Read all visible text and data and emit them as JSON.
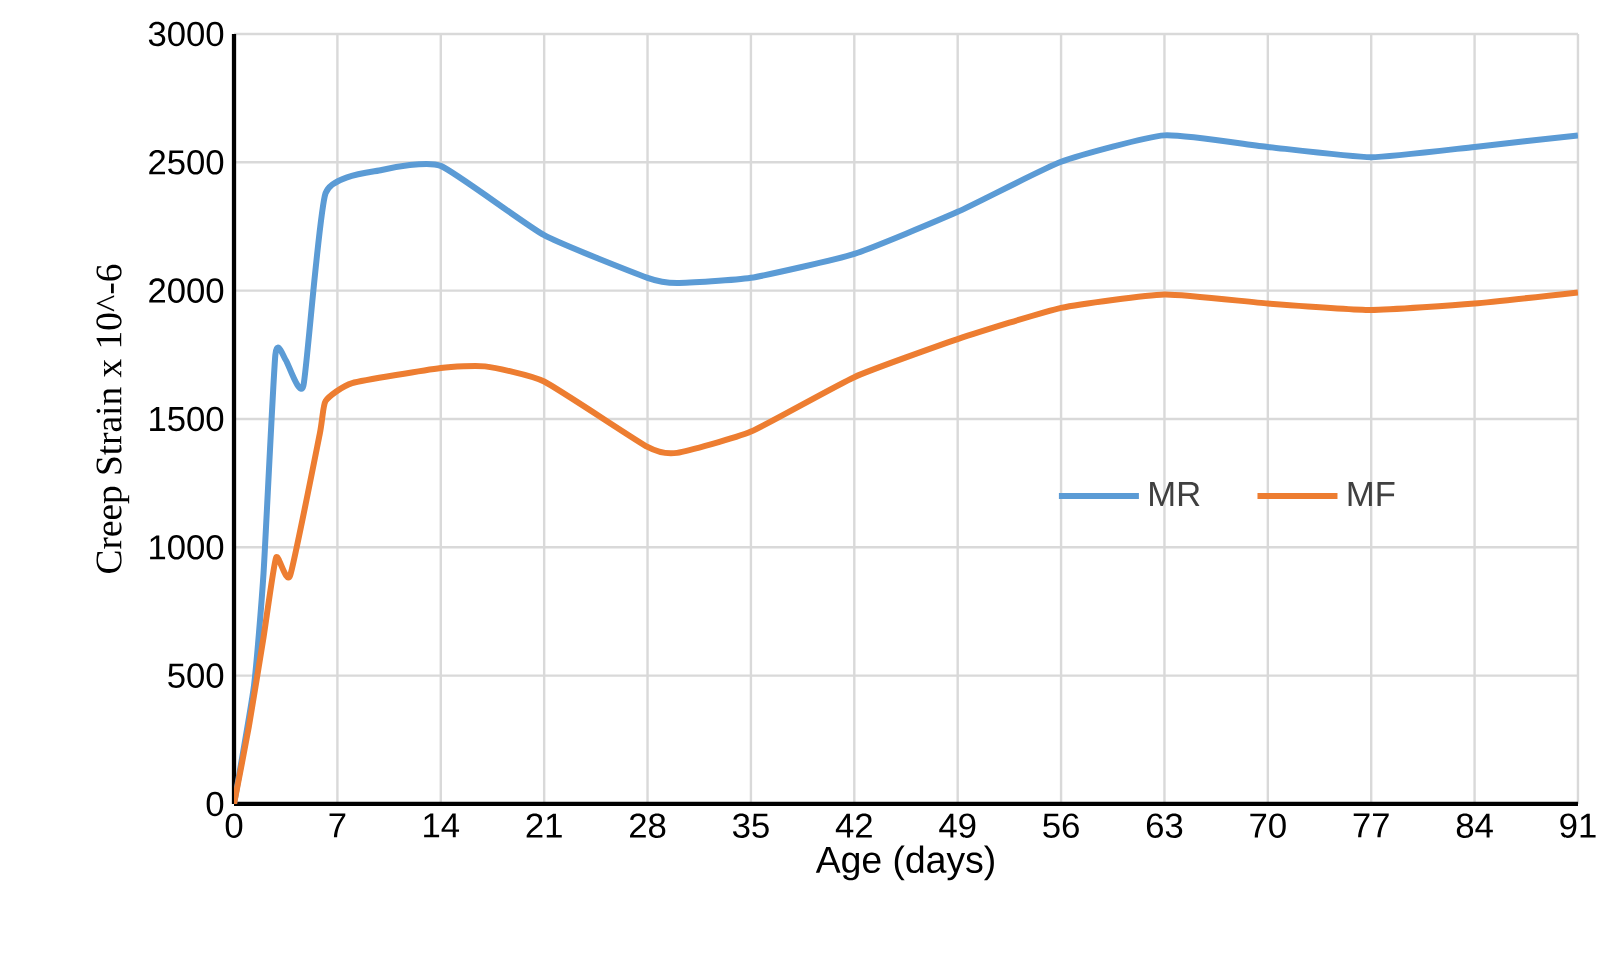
{
  "chart_data": {
    "type": "line",
    "xlabel": "Age (days)",
    "ylabel": "Creep Strain x 10^-6",
    "xlim": [
      0,
      91
    ],
    "ylim": [
      0,
      3000
    ],
    "xticks": [
      0,
      7,
      14,
      21,
      28,
      35,
      42,
      49,
      56,
      63,
      70,
      77,
      84,
      91
    ],
    "yticks": [
      0,
      500,
      1000,
      1500,
      2000,
      2500,
      3000
    ],
    "grid": true,
    "legend": "right",
    "marker": "none",
    "line_style": "solid",
    "series": [
      {
        "name": "MR",
        "color": "#5b9bd5",
        "x": [
          0,
          1.35,
          2,
          2.8,
          3.5,
          4.7,
          6.2,
          10,
          14,
          21,
          28,
          30,
          35,
          42,
          49,
          56,
          63,
          70,
          77,
          84,
          91
        ],
        "values": [
          0,
          460,
          900,
          1750,
          1730,
          1630,
          2380,
          2470,
          2486,
          2216,
          2050,
          2030,
          2050,
          2143,
          2307,
          2502,
          2605,
          2560,
          2520,
          2560,
          2605
        ]
      },
      {
        "name": "MF",
        "color": "#ed7d31",
        "x": [
          0,
          1,
          2,
          2.85,
          3.8,
          5.8,
          6.2,
          8,
          14,
          17,
          21,
          28,
          30,
          35,
          42,
          49,
          56,
          63,
          70,
          77,
          84,
          91
        ],
        "values": [
          0,
          300,
          650,
          960,
          890,
          1440,
          1570,
          1640,
          1699,
          1705,
          1646,
          1391,
          1368,
          1451,
          1663,
          1811,
          1933,
          1985,
          1950,
          1925,
          1950,
          1993
        ]
      }
    ]
  }
}
